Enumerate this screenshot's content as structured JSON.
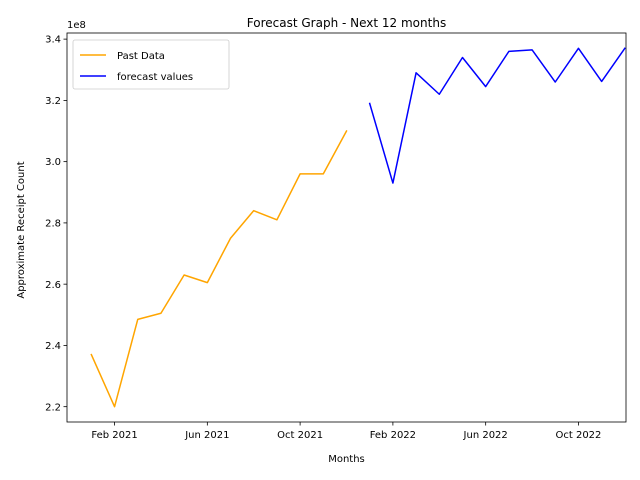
{
  "chart_data": {
    "type": "line",
    "title": "Forecast Graph - Next 12 months",
    "xlabel": "Months",
    "ylabel": "Approximate Receipt Count",
    "y_scale_label": "1e8",
    "y_multiplier": 100000000,
    "ylim": [
      2.15,
      3.42
    ],
    "y_ticks": [
      2.2,
      2.4,
      2.6,
      2.8,
      3.0,
      3.2,
      3.4
    ],
    "y_tick_labels": [
      "2.2",
      "2.4",
      "2.6",
      "2.8",
      "3.0",
      "3.2",
      "3.4"
    ],
    "xlim": [
      -1.05,
      23.05
    ],
    "x_ticks": [
      1,
      5,
      9,
      13,
      17,
      21
    ],
    "x_tick_labels": [
      "Feb 2021",
      "Jun 2021",
      "Oct 2021",
      "Feb 2022",
      "Jun 2022",
      "Oct 2022"
    ],
    "legend_position": "top-left",
    "series": [
      {
        "name": "Past Data",
        "color": "#ffa500",
        "x": [
          0,
          1,
          2,
          3,
          4,
          5,
          6,
          7,
          8,
          9,
          10,
          11
        ],
        "values": [
          2.37,
          2.2,
          2.485,
          2.505,
          2.63,
          2.605,
          2.75,
          2.84,
          2.81,
          2.96,
          2.96,
          3.1
        ]
      },
      {
        "name": "forecast values",
        "color": "#0000ff",
        "x": [
          12,
          13,
          14,
          15,
          16,
          17,
          18,
          19,
          20,
          21,
          22,
          23
        ],
        "values": [
          3.19,
          2.93,
          3.29,
          3.22,
          3.34,
          3.245,
          3.36,
          3.365,
          3.26,
          3.37,
          3.262,
          3.37
        ]
      }
    ]
  }
}
